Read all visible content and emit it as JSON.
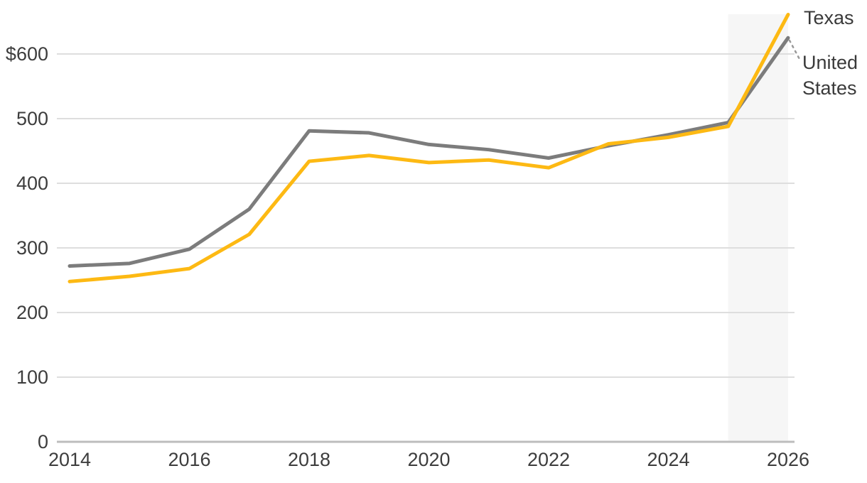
{
  "chart_data": {
    "type": "line",
    "x": [
      2014,
      2015,
      2016,
      2017,
      2018,
      2019,
      2020,
      2021,
      2022,
      2023,
      2024,
      2025,
      2026
    ],
    "series": [
      {
        "name": "United States",
        "color": "#7c7c7c",
        "values": [
          272,
          276,
          298,
          360,
          481,
          478,
          460,
          452,
          439,
          458,
          475,
          494,
          625
        ]
      },
      {
        "name": "Texas",
        "color": "#fdb913",
        "values": [
          248,
          256,
          268,
          321,
          434,
          443,
          432,
          436,
          424,
          461,
          471,
          488,
          661
        ]
      }
    ],
    "y_ticks": [
      {
        "label": "$600",
        "value": 600
      },
      {
        "label": "500",
        "value": 500
      },
      {
        "label": "400",
        "value": 400
      },
      {
        "label": "300",
        "value": 300
      },
      {
        "label": "200",
        "value": 200
      },
      {
        "label": "100",
        "value": 100
      },
      {
        "label": "0",
        "value": 0
      }
    ],
    "x_ticks": [
      {
        "label": "2014",
        "value": 2014
      },
      {
        "label": "2016",
        "value": 2016
      },
      {
        "label": "2018",
        "value": 2018
      },
      {
        "label": "2020",
        "value": 2020
      },
      {
        "label": "2022",
        "value": 2022
      },
      {
        "label": "2024",
        "value": 2024
      },
      {
        "label": "2026",
        "value": 2026
      }
    ],
    "ylim": [
      0,
      665
    ],
    "xlim": [
      2014,
      2026
    ],
    "grid": "horizontal",
    "legend_position": "right-of-line-ends",
    "forecast_band": {
      "from": 2025,
      "to": 2026
    },
    "title": "",
    "xlabel": "",
    "ylabel": ""
  },
  "colors": {
    "texas_line": "#fdb913",
    "us_line": "#7c7c7c",
    "gridline": "#dedede",
    "zero_axis": "#bdbdbd",
    "forecast_band_fill": "#f6f6f6",
    "leader_dots": "#999999",
    "text": "#3d3d3d"
  }
}
